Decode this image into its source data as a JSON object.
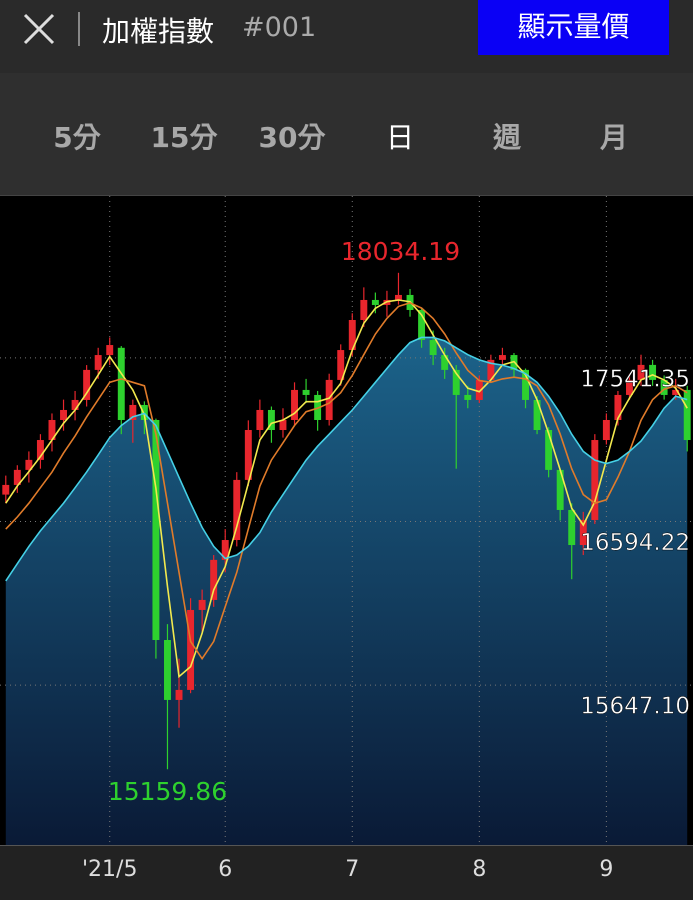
{
  "header": {
    "title": "加權指數",
    "code": "#001",
    "button": "顯示量價"
  },
  "tabs": [
    "5分",
    "15分",
    "30分",
    "日",
    "週",
    "月"
  ],
  "selected_tab": 3,
  "chart_data": {
    "type": "candlestick",
    "up_color": "#e8262d",
    "down_color": "#2ed12e",
    "candles": [
      [
        16750,
        16860,
        16700,
        16806
      ],
      [
        16806,
        16920,
        16760,
        16893
      ],
      [
        16893,
        17000,
        16820,
        16951
      ],
      [
        16951,
        17100,
        16900,
        17066
      ],
      [
        17066,
        17220,
        17000,
        17182
      ],
      [
        17182,
        17300,
        17120,
        17240
      ],
      [
        17240,
        17350,
        17180,
        17298
      ],
      [
        17298,
        17500,
        17260,
        17472
      ],
      [
        17472,
        17600,
        17420,
        17558
      ],
      [
        17558,
        17660,
        17500,
        17616
      ],
      [
        17600,
        17610,
        17100,
        17182
      ],
      [
        17182,
        17300,
        17050,
        17269
      ],
      [
        17269,
        17290,
        17100,
        17182
      ],
      [
        17182,
        17190,
        15800,
        15908
      ],
      [
        15908,
        16000,
        15159.86,
        15561
      ],
      [
        15561,
        15800,
        15400,
        15619
      ],
      [
        15619,
        16150,
        15600,
        16082
      ],
      [
        16082,
        16200,
        15950,
        16140
      ],
      [
        16140,
        16400,
        16100,
        16372
      ],
      [
        16372,
        16550,
        16300,
        16487
      ],
      [
        16487,
        16880,
        16450,
        16835
      ],
      [
        16835,
        17180,
        16800,
        17124
      ],
      [
        17124,
        17300,
        17080,
        17240
      ],
      [
        17240,
        17260,
        17050,
        17124
      ],
      [
        17124,
        17250,
        17080,
        17182
      ],
      [
        17182,
        17400,
        17150,
        17356
      ],
      [
        17356,
        17420,
        17280,
        17327
      ],
      [
        17327,
        17350,
        17120,
        17182
      ],
      [
        17182,
        17450,
        17150,
        17414
      ],
      [
        17414,
        17620,
        17380,
        17587
      ],
      [
        17587,
        17800,
        17550,
        17761
      ],
      [
        17761,
        17950,
        17720,
        17877
      ],
      [
        17877,
        17920,
        17800,
        17848
      ],
      [
        17848,
        17930,
        17780,
        17877
      ],
      [
        17877,
        18034.19,
        17850,
        17906
      ],
      [
        17906,
        17940,
        17780,
        17819
      ],
      [
        17819,
        17830,
        17600,
        17645
      ],
      [
        17645,
        17700,
        17500,
        17558
      ],
      [
        17558,
        17600,
        17420,
        17472
      ],
      [
        17472,
        17500,
        16900,
        17327
      ],
      [
        17327,
        17380,
        17250,
        17298
      ],
      [
        17298,
        17440,
        17280,
        17414
      ],
      [
        17414,
        17560,
        17400,
        17530
      ],
      [
        17530,
        17600,
        17500,
        17558
      ],
      [
        17558,
        17570,
        17430,
        17472
      ],
      [
        17472,
        17480,
        17250,
        17298
      ],
      [
        17298,
        17320,
        17100,
        17124
      ],
      [
        17124,
        17140,
        16850,
        16893
      ],
      [
        16893,
        16900,
        16600,
        16661
      ],
      [
        16661,
        16700,
        16260,
        16458
      ],
      [
        16458,
        16650,
        16400,
        16603
      ],
      [
        16603,
        17100,
        16580,
        17066
      ],
      [
        17066,
        17220,
        17040,
        17182
      ],
      [
        17182,
        17350,
        17150,
        17327
      ],
      [
        17327,
        17450,
        17300,
        17414
      ],
      [
        17414,
        17560,
        17380,
        17501
      ],
      [
        17501,
        17530,
        17380,
        17414
      ],
      [
        17414,
        17440,
        17300,
        17327
      ],
      [
        17327,
        17420,
        17300,
        17356
      ],
      [
        17356,
        17380,
        17000,
        17066
      ]
    ],
    "series": [
      {
        "color": "#f2e94e",
        "values": [
          16700,
          16800,
          16883,
          16970,
          17066,
          17163,
          17240,
          17337,
          17443,
          17549,
          17452,
          17356,
          17211,
          16786,
          16217,
          15696,
          15754,
          15947,
          16198,
          16333,
          16565,
          16815,
          17066,
          17163,
          17182,
          17221,
          17288,
          17288,
          17308,
          17394,
          17587,
          17742,
          17829,
          17867,
          17877,
          17867,
          17790,
          17674,
          17558,
          17452,
          17366,
          17346,
          17414,
          17501,
          17520,
          17443,
          17298,
          17105,
          16893,
          16671,
          16574,
          16709,
          16950,
          17192,
          17308,
          17414,
          17443,
          17414,
          17366,
          17250
        ]
      },
      {
        "color": "#e07b2a",
        "values": [
          16550,
          16620,
          16700,
          16790,
          16880,
          16990,
          17090,
          17200,
          17300,
          17400,
          17420,
          17400,
          17380,
          17100,
          16700,
          16300,
          15900,
          15800,
          15900,
          16100,
          16300,
          16550,
          16800,
          16950,
          17050,
          17150,
          17230,
          17250,
          17280,
          17340,
          17440,
          17560,
          17680,
          17770,
          17840,
          17860,
          17830,
          17770,
          17680,
          17570,
          17470,
          17410,
          17400,
          17420,
          17430,
          17420,
          17380,
          17270,
          17100,
          16900,
          16750,
          16700,
          16720,
          16850,
          17000,
          17180,
          17300,
          17360,
          17380,
          17340
        ]
      },
      {
        "color": "#45d0e6",
        "values": [
          16250,
          16350,
          16450,
          16540,
          16620,
          16700,
          16790,
          16880,
          16980,
          17080,
          17150,
          17200,
          17220,
          17150,
          17000,
          16850,
          16700,
          16560,
          16450,
          16380,
          16400,
          16450,
          16530,
          16650,
          16750,
          16850,
          16950,
          17030,
          17100,
          17170,
          17240,
          17320,
          17400,
          17480,
          17560,
          17630,
          17660,
          17660,
          17640,
          17600,
          17560,
          17530,
          17510,
          17500,
          17480,
          17450,
          17400,
          17320,
          17220,
          17100,
          17000,
          16950,
          16930,
          16950,
          17000,
          17060,
          17150,
          17250,
          17320,
          17300
        ]
      }
    ],
    "xlim": [
      -0.5,
      59.5
    ],
    "xticks": [
      {
        "value": 9,
        "label": "'21/5"
      },
      {
        "value": 19,
        "label": "6"
      },
      {
        "value": 30,
        "label": "7"
      },
      {
        "value": 41,
        "label": "8"
      },
      {
        "value": 52,
        "label": "9"
      }
    ],
    "ylim": [
      14721,
      18479
    ],
    "yticks": [
      {
        "value": 15647.1,
        "label": "15647.10"
      },
      16594.22,
      17541.35
    ],
    "grid": true
  }
}
